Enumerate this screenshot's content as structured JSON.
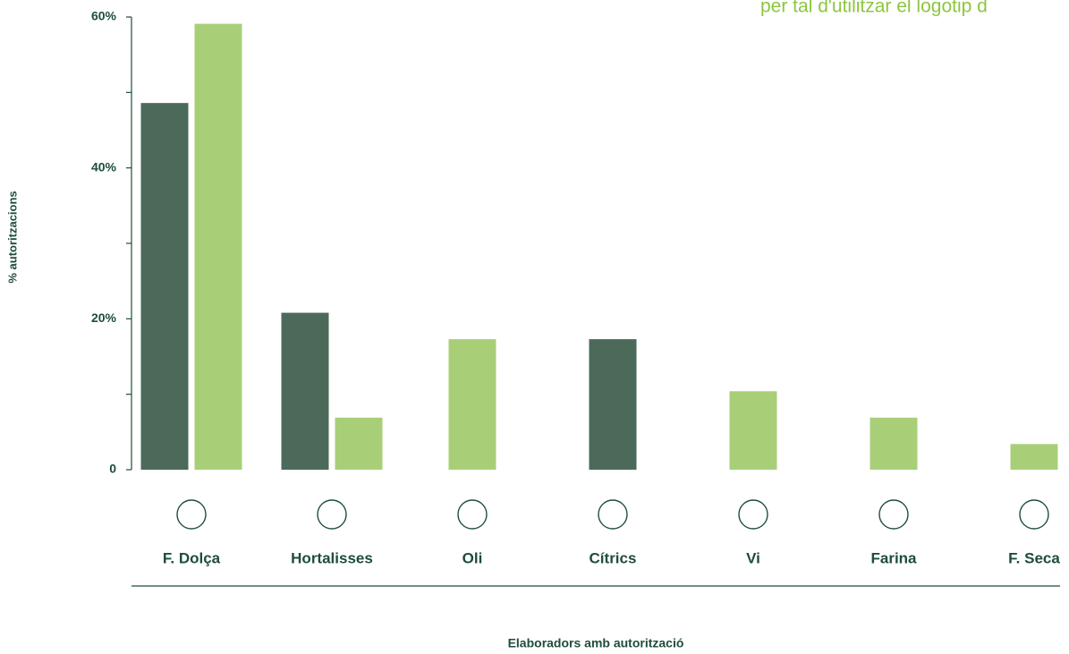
{
  "chart_data": {
    "type": "bar",
    "annotation": "per tal d'utilitzar el logotip d",
    "x_label": "Elaboradors amb autorització",
    "y_label": "% autoritzacions",
    "categories": [
      "F. Dolça",
      "Hortalisses",
      "Oli",
      "Cítrics",
      "Vi",
      "Farina",
      "F. Seca"
    ],
    "series": [
      {
        "color": "#4b6a5a",
        "values": [
          48.6,
          20.8,
          null,
          17.3,
          null,
          null,
          null
        ]
      },
      {
        "color": "#a8cf78",
        "values": [
          59.1,
          6.9,
          17.3,
          null,
          10.4,
          6.9,
          3.4
        ]
      }
    ],
    "ylim": [
      0,
      60
    ],
    "yticks": [
      {
        "value": 0,
        "label": "0"
      },
      {
        "value": 20,
        "label": "20%"
      },
      {
        "value": 40,
        "label": "40%"
      },
      {
        "value": 60,
        "label": "60%"
      }
    ],
    "yminor_ticks": [
      10,
      30,
      50
    ],
    "grid": false
  }
}
